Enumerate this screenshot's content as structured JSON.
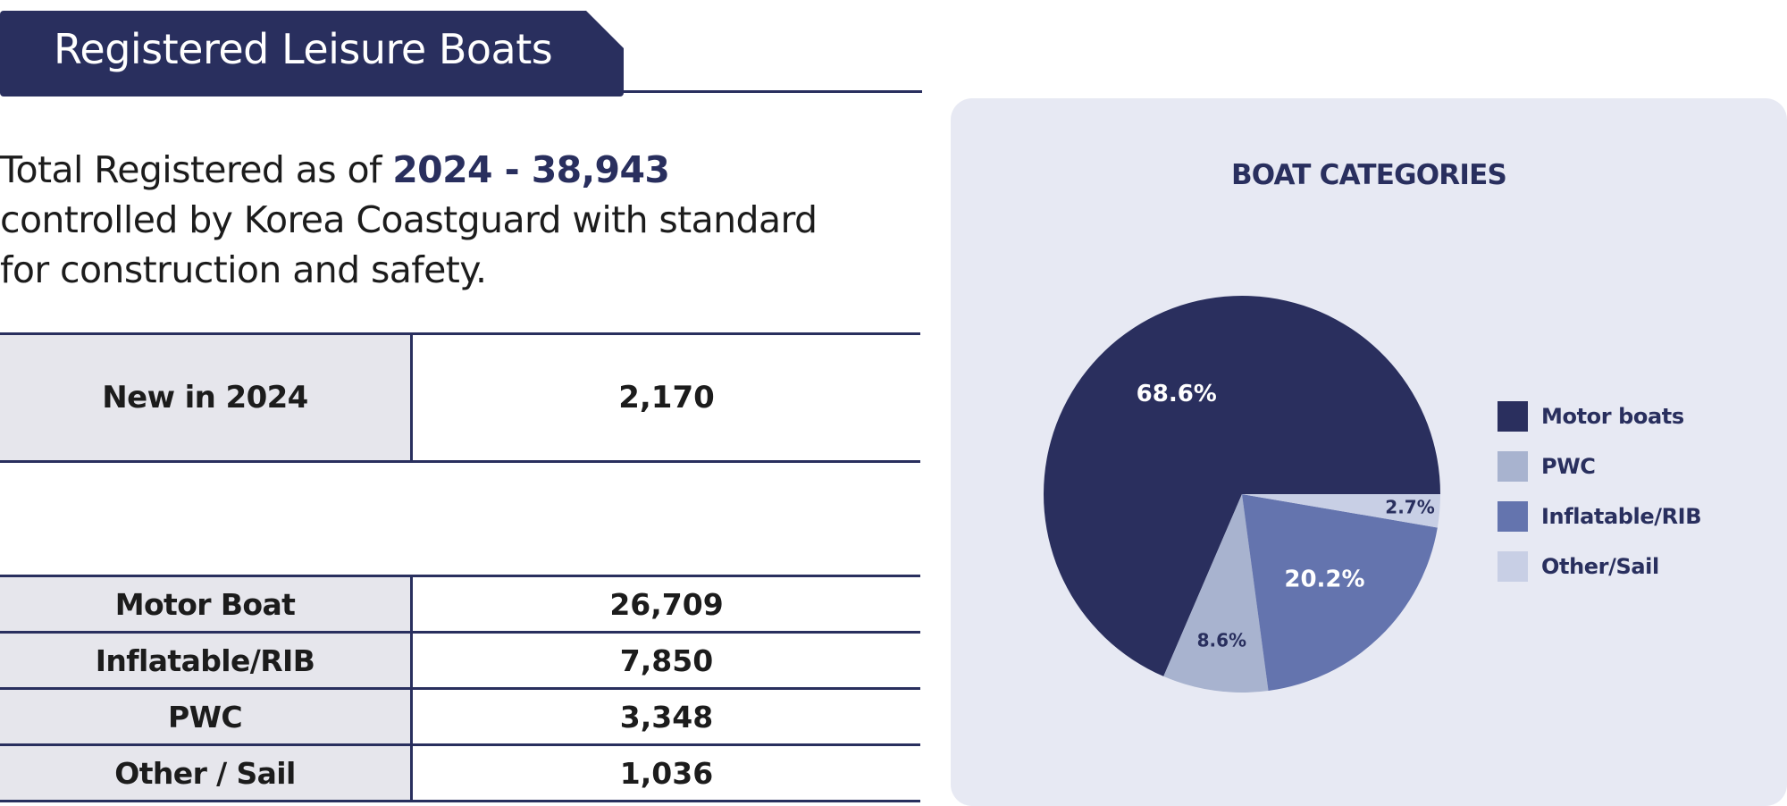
{
  "header": {
    "title": "Registered Leisure Boats"
  },
  "intro": {
    "prefix": "Total Registered as of ",
    "highlight": "2024 - 38,943",
    "line2": "controlled by Korea Coastguard with standard",
    "line3": "for construction and safety."
  },
  "new_registrations": {
    "label": "New in 2024",
    "value": "2,170"
  },
  "categories_table": [
    {
      "label": "Motor Boat",
      "value": "26,709"
    },
    {
      "label": "Inflatable/RIB",
      "value": "7,850"
    },
    {
      "label": "PWC",
      "value": "3,348"
    },
    {
      "label": "Other / Sail",
      "value": "1,036"
    }
  ],
  "colors": {
    "navy": "#292f5e",
    "motor": "#2a2f5e",
    "pwc": "#a8b3cf",
    "inflatable": "#6474ae",
    "other": "#c8cfe5",
    "panel": "#e7e9f3",
    "label_bg": "#e6e6ec"
  },
  "chart_data": {
    "type": "pie",
    "title": "BOAT CATEGORIES",
    "legend_position": "right",
    "slices": [
      {
        "name": "Motor boats",
        "value": 68.6,
        "label": "68.6%",
        "color": "#2a2f5e",
        "label_color": "#ffffff"
      },
      {
        "name": "PWC",
        "value": 8.6,
        "label": "8.6%",
        "color": "#a8b3cf",
        "label_color": "#292f5e"
      },
      {
        "name": "Inflatable/RIB",
        "value": 20.2,
        "label": "20.2%",
        "color": "#6474ae",
        "label_color": "#ffffff"
      },
      {
        "name": "Other/Sail",
        "value": 2.7,
        "label": "2.7%",
        "color": "#c8cfe5",
        "label_color": "#292f5e"
      }
    ]
  }
}
